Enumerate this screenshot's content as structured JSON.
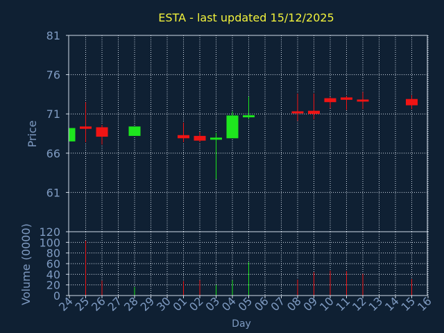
{
  "title": "ESTA - last updated 15/12/2025",
  "colors": {
    "background": "#0f2033",
    "axis": "#d2dce8",
    "grid": "#d2dce8",
    "label": "#7f9bc2",
    "title": "#f2f23c",
    "up": "#1ee61e",
    "down": "#f01414"
  },
  "chart_data": [
    {
      "type": "candlestick",
      "ylabel": "Price",
      "ylim": [
        56,
        81
      ],
      "yticks": [
        61,
        66,
        71,
        76,
        81
      ],
      "grid": true,
      "x_tick_labels": [
        "24",
        "25",
        "26",
        "27",
        "28",
        "29",
        "30",
        "01",
        "02",
        "03",
        "04",
        "05",
        "06",
        "07",
        "08",
        "09",
        "10",
        "11",
        "12",
        "13",
        "14",
        "15",
        "16"
      ],
      "candles": [
        {
          "x": "24",
          "open": 67.5,
          "close": 69.2,
          "high": 69.2,
          "low": 67.5
        },
        {
          "x": "25",
          "open": 69.4,
          "close": 69.1,
          "high": 72.5,
          "low": 67.4
        },
        {
          "x": "26",
          "open": 69.3,
          "close": 68.1,
          "high": 69.6,
          "low": 67.1
        },
        {
          "x": "28",
          "open": 68.2,
          "close": 69.4,
          "high": 69.4,
          "low": 68.2
        },
        {
          "x": "01",
          "open": 68.3,
          "close": 67.9,
          "high": 69.9,
          "low": 67.4
        },
        {
          "x": "02",
          "open": 68.2,
          "close": 67.6,
          "high": 68.7,
          "low": 67.4
        },
        {
          "x": "03",
          "open": 67.8,
          "close": 67.9,
          "high": 68.6,
          "low": 62.7
        },
        {
          "x": "04",
          "open": 67.9,
          "close": 70.8,
          "high": 71.3,
          "low": 67.9
        },
        {
          "x": "05",
          "open": 70.6,
          "close": 70.8,
          "high": 73.2,
          "low": 70.3
        },
        {
          "x": "08",
          "open": 71.3,
          "close": 71.1,
          "high": 73.6,
          "low": 70.1
        },
        {
          "x": "09",
          "open": 71.4,
          "close": 71.0,
          "high": 73.6,
          "low": 70.3
        },
        {
          "x": "10",
          "open": 73.0,
          "close": 72.5,
          "high": 73.2,
          "low": 71.7
        },
        {
          "x": "11",
          "open": 73.1,
          "close": 72.8,
          "high": 73.3,
          "low": 71.5
        },
        {
          "x": "12",
          "open": 72.8,
          "close": 72.6,
          "high": 73.8,
          "low": 71.6
        },
        {
          "x": "15",
          "open": 72.9,
          "close": 72.1,
          "high": 73.4,
          "low": 71.6
        }
      ]
    },
    {
      "type": "bar",
      "ylabel": "Volume (0000)",
      "xlabel": "Day",
      "ylim": [
        0,
        120
      ],
      "yticks": [
        0,
        20,
        40,
        60,
        80,
        100,
        120
      ],
      "grid": true,
      "x_tick_labels": [
        "24",
        "25",
        "26",
        "27",
        "28",
        "29",
        "30",
        "01",
        "02",
        "03",
        "04",
        "05",
        "06",
        "07",
        "08",
        "09",
        "10",
        "11",
        "12",
        "13",
        "14",
        "15",
        "16"
      ],
      "bars": [
        {
          "x": "24",
          "value": 0,
          "direction": "up"
        },
        {
          "x": "25",
          "value": 103,
          "direction": "down"
        },
        {
          "x": "26",
          "value": 28,
          "direction": "down"
        },
        {
          "x": "28",
          "value": 16,
          "direction": "up"
        },
        {
          "x": "01",
          "value": 27,
          "direction": "down"
        },
        {
          "x": "02",
          "value": 29,
          "direction": "down"
        },
        {
          "x": "03",
          "value": 20,
          "direction": "up"
        },
        {
          "x": "04",
          "value": 29,
          "direction": "up"
        },
        {
          "x": "05",
          "value": 63,
          "direction": "up"
        },
        {
          "x": "08",
          "value": 30,
          "direction": "down"
        },
        {
          "x": "09",
          "value": 44,
          "direction": "down"
        },
        {
          "x": "10",
          "value": 47,
          "direction": "down"
        },
        {
          "x": "11",
          "value": 46,
          "direction": "down"
        },
        {
          "x": "12",
          "value": 41,
          "direction": "down"
        },
        {
          "x": "15",
          "value": 31,
          "direction": "down"
        }
      ]
    }
  ]
}
